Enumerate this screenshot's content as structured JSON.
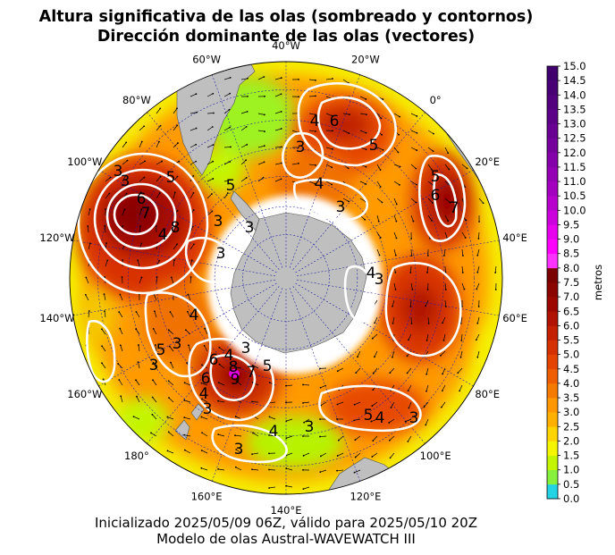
{
  "title_line1": "Altura significativa de las olas (sombreado y contornos)",
  "title_line2": "Dirección dominante de las olas (vectores)",
  "footer_line1": "Inicializado 2025/05/09 06Z, válido para 2025/05/10 20Z",
  "footer_line2": "Modelo de olas Austral-WAVEWATCH III",
  "colorbar": {
    "label": "metros",
    "ticks": [
      "0.0",
      "0.5",
      "1.0",
      "1.5",
      "2.0",
      "2.5",
      "3.0",
      "3.5",
      "4.0",
      "4.5",
      "5.0",
      "5.5",
      "6.0",
      "6.5",
      "7.0",
      "7.5",
      "8.0",
      "8.5",
      "9.0",
      "9.5",
      "10.0",
      "10.5",
      "11.0",
      "11.5",
      "12.0",
      "12.5",
      "13.0",
      "13.5",
      "14.0",
      "14.5",
      "15.0"
    ],
    "colors": [
      "#22d3e6",
      "#86f03c",
      "#c4f500",
      "#f5f500",
      "#ffd400",
      "#ffb000",
      "#ff9800",
      "#f57a00",
      "#ee5e00",
      "#e44400",
      "#d43000",
      "#c42000",
      "#b01200",
      "#9c0800",
      "#8a0400",
      "#7a0000",
      "#ff33ff",
      "#ff00ff",
      "#e600ee",
      "#cc00dd",
      "#b800cc",
      "#a400c0",
      "#9400b3",
      "#8400a8",
      "#76009c",
      "#680092",
      "#5c0088",
      "#52007e",
      "#480075",
      "#40006e"
    ]
  },
  "longitude_labels": [
    {
      "text": "40°W",
      "lon": -40
    },
    {
      "text": "20°W",
      "lon": -20
    },
    {
      "text": "0°",
      "lon": 0
    },
    {
      "text": "20°E",
      "lon": 20
    },
    {
      "text": "40°E",
      "lon": 40
    },
    {
      "text": "60°E",
      "lon": 60
    },
    {
      "text": "80°E",
      "lon": 80
    },
    {
      "text": "100°E",
      "lon": 100
    },
    {
      "text": "120°E",
      "lon": 120
    },
    {
      "text": "140°E",
      "lon": 140
    },
    {
      "text": "160°E",
      "lon": 160
    },
    {
      "text": "180°",
      "lon": 180
    },
    {
      "text": "160°W",
      "lon": -160
    },
    {
      "text": "140°W",
      "lon": -140
    },
    {
      "text": "120°W",
      "lon": -120
    },
    {
      "text": "100°W",
      "lon": -100
    },
    {
      "text": "80°W",
      "lon": -80
    },
    {
      "text": "60°W",
      "lon": -60
    }
  ],
  "contour_labels": [
    "4",
    "6",
    "5",
    "3",
    "4",
    "3",
    "5",
    "6",
    "7",
    "3",
    "5",
    "6",
    "7",
    "8",
    "4",
    "3",
    "3",
    "3",
    "4",
    "3",
    "5",
    "5",
    "6",
    "3",
    "4",
    "3",
    "4",
    "6",
    "8",
    "7",
    "5",
    "9",
    "4",
    "3",
    "3",
    "5",
    "4",
    "3",
    "4",
    "3",
    "3",
    "3"
  ]
}
